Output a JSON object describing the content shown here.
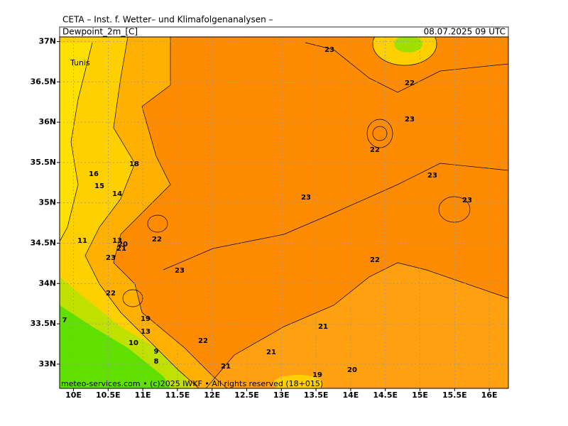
{
  "header": {
    "institute": "CETA – Inst. f. Wetter– und Klimafolgenanalysen –",
    "field": "Dewpoint_2m_[C]",
    "time": "08.07.2025 09 UTC"
  },
  "axes": {
    "lat_labels": [
      "37N",
      "36.5N",
      "36N",
      "35.5N",
      "35N",
      "34.5N",
      "34N",
      "33.5N",
      "33N"
    ],
    "lon_labels": [
      "10E",
      "10.5E",
      "11E",
      "11.5E",
      "12E",
      "12.5E",
      "13E",
      "13.5E",
      "14E",
      "14.5E",
      "15E",
      "15.5E",
      "16E"
    ]
  },
  "places": [
    "Tunis"
  ],
  "contour_labels": [
    23,
    22,
    23,
    22,
    23,
    23,
    23,
    22,
    23,
    22,
    18,
    16,
    15,
    14,
    11,
    13,
    20,
    21,
    23,
    22,
    19,
    13,
    7,
    10,
    9,
    8,
    22,
    21,
    21,
    19,
    20,
    21
  ],
  "footer": "meteo-services.com • (c)2025 IWKF • All rights reserved (18+015)"
}
